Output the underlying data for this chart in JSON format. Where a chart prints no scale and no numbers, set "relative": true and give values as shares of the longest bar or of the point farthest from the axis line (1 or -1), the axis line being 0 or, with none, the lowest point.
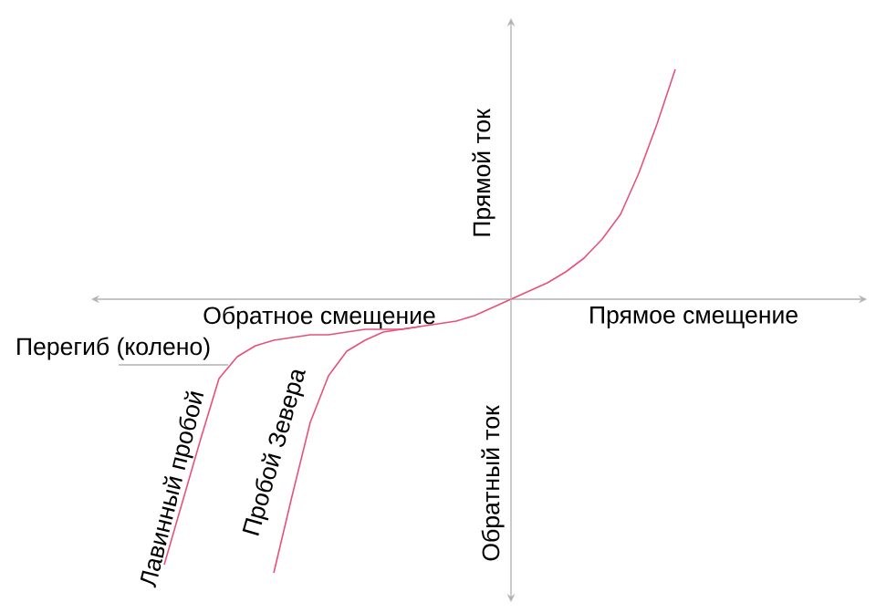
{
  "chart_data": {
    "type": "line",
    "relative": true,
    "xlabel": "Прямое смещение",
    "ylabel": "Прямой ток",
    "annotations": [
      "Обратное смещение",
      "Обратный ток",
      "Перегиб (колено)"
    ],
    "categories": [
      null,
      null,
      null,
      null,
      null,
      null,
      null,
      null,
      null,
      null,
      null,
      null,
      null,
      null,
      null,
      null,
      null,
      null,
      null,
      null,
      null,
      null,
      null,
      null,
      null,
      null,
      null,
      null,
      null
    ],
    "series": [
      {
        "name": "Лавинный пробой",
        "color": "#e8507a",
        "values": [
          -0.97,
          -0.74,
          -0.51,
          -0.29,
          -0.21,
          -0.17,
          -0.15,
          -0.14,
          -0.13,
          -0.13,
          -0.12,
          -0.11,
          -0.11,
          -0.11,
          -0.1,
          -0.09,
          -0.08,
          -0.06,
          -0.03,
          0,
          0.03,
          0.06,
          0.1,
          0.15,
          0.22,
          0.31,
          0.46,
          0.64,
          0.84
        ]
      },
      {
        "name": "Пробой Зевера",
        "color": "#e8507a",
        "values": [
          null,
          null,
          null,
          null,
          null,
          null,
          -1,
          -0.72,
          -0.45,
          -0.28,
          -0.19,
          -0.15,
          -0.12,
          -0.11,
          -0.1,
          null,
          null,
          null,
          null,
          null,
          null,
          null,
          null,
          null,
          null,
          null,
          null,
          null,
          null
        ]
      }
    ]
  }
}
